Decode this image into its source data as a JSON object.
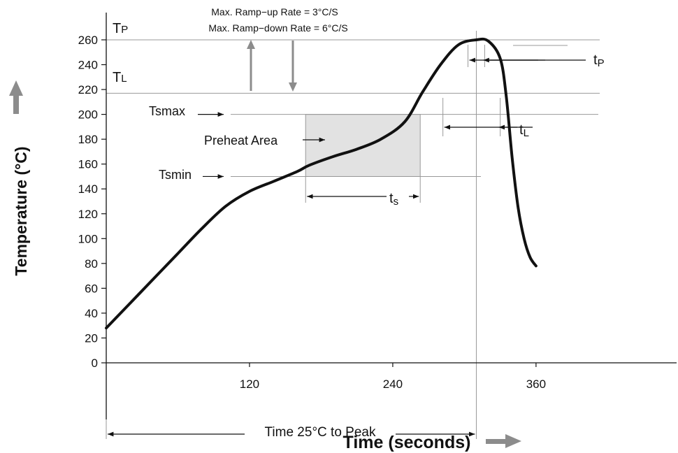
{
  "chart_data": {
    "type": "line",
    "title": "",
    "xlabel": "Time (seconds)",
    "ylabel": "Temperature (°C)",
    "xlim": [
      0,
      420
    ],
    "ylim": [
      0,
      270
    ],
    "x_ticks": [
      120,
      240,
      360
    ],
    "y_ticks": [
      0,
      20,
      40,
      60,
      80,
      100,
      120,
      140,
      160,
      180,
      200,
      220,
      240,
      260
    ],
    "series": [
      {
        "x": [
          0,
          20,
          40,
          60,
          80,
          100,
          120,
          140,
          160,
          170,
          190,
          210,
          230,
          250,
          265,
          280,
          295,
          310,
          320,
          330,
          335,
          340,
          345,
          350,
          355,
          360
        ],
        "y": [
          28,
          48,
          68,
          88,
          108,
          126,
          138,
          146,
          154,
          159,
          166,
          172,
          180,
          194,
          218,
          240,
          256,
          260,
          259,
          245,
          215,
          165,
          125,
          100,
          85,
          78
        ]
      }
    ],
    "reference_lines": {
      "tp_value": 260,
      "tl_value": 217,
      "tsmax_value": 200,
      "tsmin_value": 150,
      "peak_time": 310,
      "tl_start_time": 282,
      "tl_end_time": 330,
      "tp_start_time": 303,
      "tp_end_time": 317,
      "preheat_start_time": 167,
      "preheat_end_time": 263,
      "time_to_peak_start": 0
    },
    "annotations": {
      "tp_label": "T",
      "tp_sub": "P",
      "tl_label": "T",
      "tl_sub": "L",
      "tsmax": "Tsmax",
      "tsmin": "Tsmin",
      "preheat": "Preheat Area",
      "ts_label": "t",
      "ts_sub": "s",
      "tl_time_label": "t",
      "tl_time_sub": "L",
      "tp_time_label": "t",
      "tp_time_sub": "P",
      "ramp_up": "Max. Ramp−up Rate = 3°C/S",
      "ramp_down": "Max. Ramp−down Rate = 6°C/S",
      "time_to_peak": "Time 25°C to Peak"
    },
    "grid": false,
    "legend": "none",
    "colors": {
      "curve": "#111111",
      "reference": "#999999",
      "preheat_fill": "#e2e2e2",
      "arrow_gray": "#8c8c8c"
    }
  }
}
